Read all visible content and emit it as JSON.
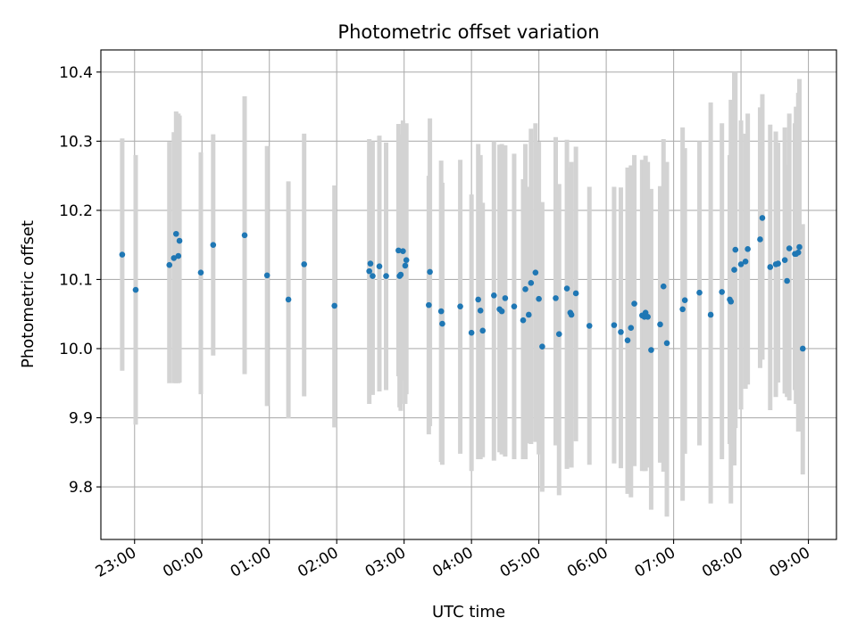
{
  "chart_data": {
    "type": "scatter",
    "title": "Photometric offset variation",
    "xlabel": "UTC time",
    "ylabel": "Photometric offset",
    "x_start": "22:30",
    "xlim": [
      "22:30",
      "09:25"
    ],
    "ylim": [
      9.724,
      10.432
    ],
    "x_ticks": [
      "23:00",
      "00:00",
      "01:00",
      "02:00",
      "03:00",
      "04:00",
      "05:00",
      "06:00",
      "07:00",
      "08:00",
      "09:00"
    ],
    "y_ticks": [
      "9.8",
      "9.9",
      "10.0",
      "10.1",
      "10.2",
      "10.3",
      "10.4"
    ],
    "grid": true,
    "error_bars": true,
    "colors": {
      "points": "#1f77b4",
      "error_bars": "#d3d3d3",
      "grid": "#b0b0b0"
    },
    "series": [
      {
        "x": [
          "22:49",
          "23:01",
          "23:31",
          "23:35",
          "23:37",
          "23:39",
          "23:40",
          "23:59",
          "00:10",
          "00:38",
          "00:58",
          "01:17",
          "01:31",
          "01:58",
          "02:29",
          "02:30",
          "02:32",
          "02:38",
          "02:44",
          "02:55",
          "02:56",
          "02:57",
          "02:59",
          "03:01",
          "03:02",
          "03:22",
          "03:23",
          "03:33",
          "03:34",
          "03:50",
          "04:00",
          "04:06",
          "04:08",
          "04:10",
          "04:20",
          "04:25",
          "04:27",
          "04:30",
          "04:38",
          "04:46",
          "04:48",
          "04:51",
          "04:53",
          "04:57",
          "05:00",
          "05:03",
          "05:15",
          "05:18",
          "05:25",
          "05:28",
          "05:29",
          "05:33",
          "05:45",
          "06:07",
          "06:13",
          "06:19",
          "06:22",
          "06:25",
          "06:32",
          "06:34",
          "06:35",
          "06:37",
          "06:40",
          "06:48",
          "06:51",
          "06:54",
          "07:08",
          "07:10",
          "07:23",
          "07:33",
          "07:43",
          "07:50",
          "07:51",
          "07:54",
          "07:55",
          "08:00",
          "08:04",
          "08:06",
          "08:17",
          "08:19",
          "08:26",
          "08:31",
          "08:33",
          "08:39",
          "08:41",
          "08:43",
          "08:48",
          "08:49",
          "08:51",
          "08:52",
          "08:55"
        ],
        "y": [
          10.136,
          10.085,
          10.121,
          10.131,
          10.166,
          10.134,
          10.156,
          10.11,
          10.15,
          10.164,
          10.106,
          10.071,
          10.122,
          10.062,
          10.112,
          10.123,
          10.105,
          10.119,
          10.105,
          10.142,
          10.105,
          10.107,
          10.141,
          10.12,
          10.128,
          10.063,
          10.111,
          10.054,
          10.036,
          10.061,
          10.023,
          10.071,
          10.055,
          10.026,
          10.077,
          10.057,
          10.054,
          10.073,
          10.061,
          10.041,
          10.086,
          10.049,
          10.095,
          10.11,
          10.072,
          10.003,
          10.073,
          10.021,
          10.087,
          10.052,
          10.049,
          10.08,
          10.033,
          10.034,
          10.024,
          10.012,
          10.03,
          10.065,
          10.048,
          10.046,
          10.052,
          10.046,
          9.998,
          10.035,
          10.09,
          10.008,
          10.057,
          10.07,
          10.081,
          10.049,
          10.082,
          10.071,
          10.068,
          10.114,
          10.143,
          10.122,
          10.126,
          10.144,
          10.158,
          10.189,
          10.118,
          10.122,
          10.123,
          10.128,
          10.098,
          10.145,
          10.137,
          10.137,
          10.139,
          10.147,
          10.0
        ],
        "ylow": [
          9.968,
          9.89,
          9.95,
          9.95,
          9.95,
          9.95,
          9.951,
          9.934,
          9.99,
          9.963,
          9.917,
          9.899,
          9.931,
          9.886,
          9.92,
          9.935,
          9.933,
          9.938,
          9.94,
          9.96,
          9.915,
          9.91,
          9.954,
          9.92,
          9.934,
          9.876,
          9.888,
          9.836,
          9.832,
          9.848,
          9.823,
          9.84,
          9.84,
          9.843,
          9.838,
          9.85,
          9.847,
          9.844,
          9.84,
          9.84,
          9.84,
          9.863,
          9.862,
          9.865,
          9.847,
          9.793,
          9.86,
          9.788,
          9.826,
          9.84,
          9.828,
          9.866,
          9.832,
          9.834,
          9.827,
          9.79,
          9.785,
          9.83,
          9.823,
          9.823,
          9.823,
          9.828,
          9.767,
          9.835,
          9.822,
          9.757,
          9.78,
          9.848,
          9.86,
          9.776,
          9.84,
          9.862,
          9.776,
          9.831,
          9.885,
          9.912,
          9.942,
          9.948,
          9.972,
          9.984,
          9.911,
          9.93,
          9.951,
          9.935,
          9.93,
          9.925,
          9.94,
          9.92,
          9.88,
          9.88,
          9.818
        ],
        "yhigh": [
          10.304,
          10.28,
          10.299,
          10.313,
          10.343,
          10.34,
          10.337,
          10.284,
          10.31,
          10.365,
          10.293,
          10.242,
          10.311,
          10.236,
          10.303,
          10.294,
          10.3,
          10.308,
          10.298,
          10.325,
          10.306,
          10.31,
          10.33,
          10.319,
          10.326,
          10.25,
          10.333,
          10.272,
          10.24,
          10.273,
          10.223,
          10.296,
          10.28,
          10.211,
          10.3,
          10.295,
          10.296,
          10.294,
          10.282,
          10.245,
          10.296,
          10.234,
          10.318,
          10.326,
          10.299,
          10.212,
          10.306,
          10.238,
          10.302,
          10.262,
          10.27,
          10.292,
          10.234,
          10.234,
          10.233,
          10.262,
          10.265,
          10.28,
          10.273,
          10.269,
          10.279,
          10.27,
          10.231,
          10.235,
          10.303,
          10.27,
          10.32,
          10.29,
          10.3,
          10.356,
          10.326,
          10.28,
          10.36,
          10.4,
          10.4,
          10.33,
          10.311,
          10.34,
          10.349,
          10.368,
          10.324,
          10.314,
          10.298,
          10.32,
          10.266,
          10.34,
          10.326,
          10.35,
          10.37,
          10.39,
          10.18
        ]
      }
    ]
  }
}
